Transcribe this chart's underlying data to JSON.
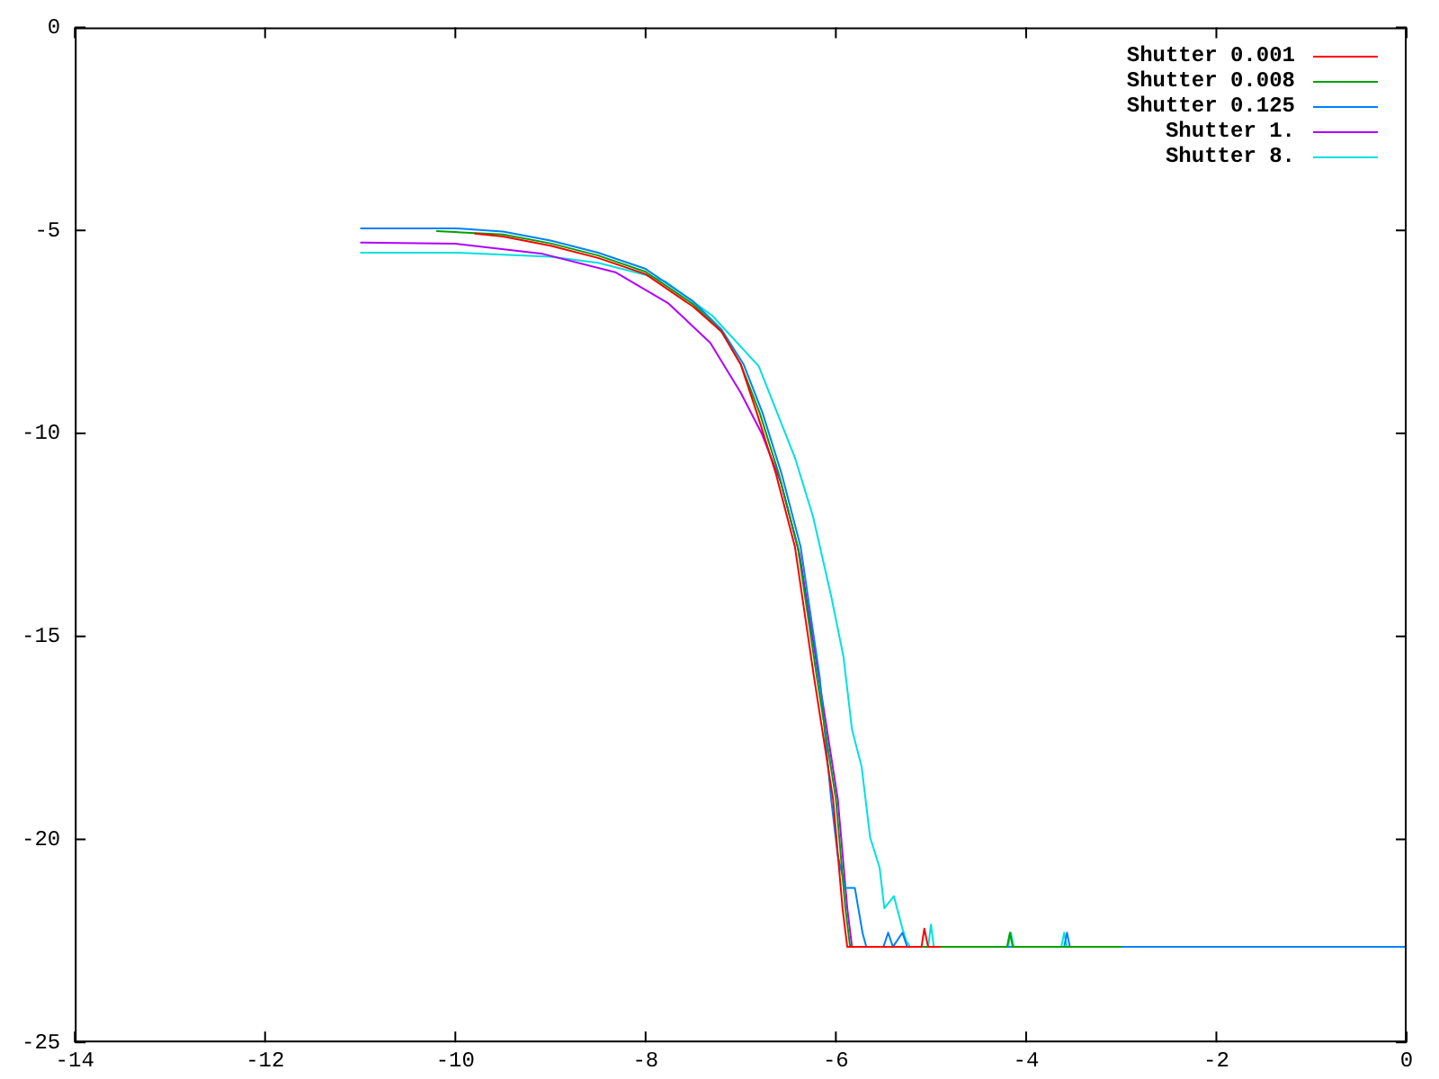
{
  "chart_data": {
    "type": "line",
    "xlim": [
      -14,
      0
    ],
    "ylim": [
      -25,
      0
    ],
    "xticks": [
      -14,
      -12,
      -10,
      -8,
      -6,
      -4,
      -2,
      0
    ],
    "yticks": [
      -25,
      -20,
      -15,
      -10,
      -5,
      0
    ],
    "grid": false,
    "legend": "top right",
    "marker": "none",
    "line_style": "solid",
    "series": [
      {
        "name": "Shutter 0.001",
        "color": "#ff0000",
        "x": [
          -9.8,
          -9.5,
          -9,
          -8.5,
          -8,
          -7.5,
          -7.2,
          -7,
          -6.83,
          -6.63,
          -6.43,
          -6.23,
          -6.03,
          -5.93,
          -5.88,
          -5.1,
          -5.07,
          -5.03,
          -4.9
        ],
        "values": [
          -5.08,
          -5.15,
          -5.38,
          -5.68,
          -6.08,
          -6.88,
          -7.5,
          -8.3,
          -9.5,
          -11,
          -12.8,
          -16,
          -19,
          -21.7,
          -22.65,
          -22.65,
          -22.2,
          -22.65,
          -22.65
        ]
      },
      {
        "name": "Shutter 0.008",
        "color": "#00a000",
        "x": [
          -10.2,
          -9.5,
          -9,
          -8.5,
          -8,
          -7.5,
          -7.2,
          -7,
          -6.8,
          -6.6,
          -6.4,
          -6.2,
          -6.0,
          -5.9,
          -5.85,
          -4.2,
          -4.17,
          -4.14,
          -3.0
        ],
        "values": [
          -5.02,
          -5.1,
          -5.32,
          -5.62,
          -6.02,
          -6.82,
          -7.5,
          -8.3,
          -9.5,
          -11,
          -12.8,
          -16,
          -19,
          -21.7,
          -22.65,
          -22.65,
          -22.3,
          -22.65,
          -22.65
        ]
      },
      {
        "name": "Shutter 0.125",
        "color": "#0080ff",
        "x": [
          -11,
          -10,
          -9.5,
          -9,
          -8.5,
          -8,
          -7.5,
          -7.2,
          -6.97,
          -6.77,
          -6.57,
          -6.37,
          -6.17,
          -6.05,
          -5.98,
          -5.9,
          -5.8,
          -5.72,
          -5.68,
          -5.5,
          -5.45,
          -5.4,
          -5.3,
          -5.25,
          -3.6,
          -3.57,
          -3.54,
          0
        ],
        "values": [
          -4.95,
          -4.95,
          -5.03,
          -5.25,
          -5.55,
          -5.95,
          -6.75,
          -7.45,
          -8.3,
          -9.5,
          -11,
          -12.8,
          -16,
          -19,
          -20.4,
          -21.2,
          -21.2,
          -22.3,
          -22.65,
          -22.65,
          -22.3,
          -22.65,
          -22.3,
          -22.65,
          -22.65,
          -22.3,
          -22.65,
          -22.65
        ]
      },
      {
        "name": "Shutter 1.",
        "color": "#b000ff",
        "x": [
          -11,
          -10,
          -9.08,
          -8.32,
          -7.76,
          -7.32,
          -7.0,
          -6.78,
          -6.58,
          -6.38,
          -6.18,
          -5.98,
          -5.88,
          -5.83,
          -5.6,
          -3.0
        ],
        "values": [
          -5.3,
          -5.33,
          -5.58,
          -6.03,
          -6.8,
          -7.77,
          -9.0,
          -10.0,
          -11.2,
          -13,
          -16,
          -19,
          -21.7,
          -22.65,
          -22.65,
          -22.65
        ]
      },
      {
        "name": "Shutter 8.",
        "color": "#00e0e0",
        "x": [
          -11,
          -10,
          -9,
          -8.5,
          -8,
          -7.8,
          -7.3,
          -6.81,
          -6.43,
          -6.24,
          -6.05,
          -5.92,
          -5.83,
          -5.73,
          -5.64,
          -5.54,
          -5.49,
          -5.39,
          -5.3,
          -5.26,
          -5.22,
          -5.03,
          -5.0,
          -4.97,
          -4.19,
          -4.16,
          -4.13,
          -3.63,
          -3.6,
          -3.57
        ],
        "values": [
          -5.55,
          -5.55,
          -5.65,
          -5.8,
          -6.1,
          -6.25,
          -7.1,
          -8.35,
          -10.6,
          -12.05,
          -14.0,
          -15.5,
          -17.3,
          -18.2,
          -19.95,
          -20.7,
          -21.7,
          -21.4,
          -22.2,
          -22.5,
          -22.65,
          -22.65,
          -22.1,
          -22.65,
          -22.65,
          -22.3,
          -22.65,
          -22.65,
          -22.3,
          -22.65
        ]
      }
    ]
  }
}
